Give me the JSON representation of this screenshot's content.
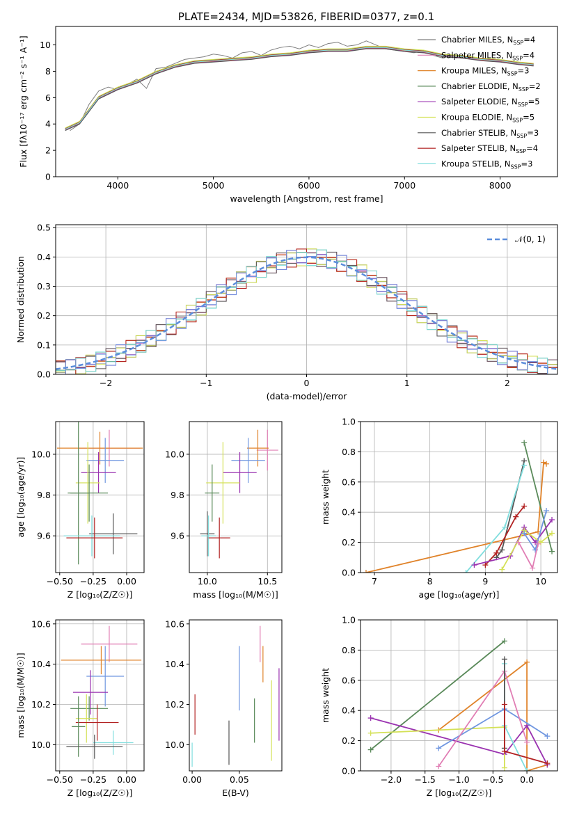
{
  "figure_title": "PLATE=2434, MJD=53826, FIBERID=0377, z=0.1",
  "legend_swatch_colors": {
    "Chabrier MILES": "#7f7f7f",
    "Salpeter MILES": "#e17fb5",
    "Kroupa MILES": "#e0832a",
    "Chabrier ELODIE": "#5a8a5a",
    "Salpeter ELODIE": "#9a32b0",
    "Kroupa ELODIE": "#d4e157",
    "Chabrier STELIB": "#555555",
    "Salpeter STELIB": "#b22222",
    "Kroupa STELIB": "#80dede",
    "Kroupa MILES alt": "#6f96e0"
  },
  "chart_data": [
    {
      "id": "spectrum",
      "type": "line",
      "xlabel": "wavelength [Angstrom, rest frame]",
      "ylabel": "Flux [fλ10⁻¹⁷ erg cm⁻² s⁻¹ A⁻¹]",
      "xlim": [
        3350,
        8600
      ],
      "ylim": [
        0,
        11.4
      ],
      "xticks": [
        4000,
        5000,
        6000,
        7000,
        8000
      ],
      "yticks": [
        0,
        2,
        4,
        6,
        8,
        10
      ],
      "grid": false,
      "legend_position": "right",
      "data_x": [
        3500,
        3600,
        3700,
        3800,
        3900,
        4000,
        4100,
        4200,
        4300,
        4400,
        4500,
        4600,
        4700,
        4800,
        4900,
        5000,
        5100,
        5200,
        5300,
        5400,
        5500,
        5600,
        5700,
        5800,
        5900,
        6000,
        6100,
        6200,
        6300,
        6400,
        6500,
        6600,
        6700,
        6800,
        6900,
        7000,
        7100,
        7200,
        7300,
        7400
      ],
      "data_y": [
        3.5,
        4.0,
        5.5,
        6.5,
        6.8,
        6.6,
        7.0,
        7.4,
        6.7,
        8.2,
        8.3,
        8.6,
        8.9,
        9.0,
        9.1,
        9.3,
        9.2,
        9.0,
        9.4,
        9.5,
        9.2,
        9.6,
        9.8,
        9.9,
        9.7,
        10.0,
        9.8,
        10.1,
        10.2,
        9.9,
        10.0,
        10.3,
        10.0,
        9.7,
        9.6,
        9.5,
        9.4,
        9.6,
        9.2,
        9.0
      ],
      "model_x": [
        3450,
        3600,
        3800,
        4000,
        4200,
        4400,
        4600,
        4800,
        5000,
        5200,
        5400,
        5600,
        5800,
        6000,
        6200,
        6400,
        6600,
        6800,
        7000,
        7200,
        7400,
        7600,
        7800,
        8000,
        8200,
        8350
      ],
      "model_y": [
        3.6,
        4.1,
        6.0,
        6.7,
        7.2,
        7.9,
        8.4,
        8.7,
        8.8,
        8.9,
        9.0,
        9.2,
        9.3,
        9.5,
        9.6,
        9.6,
        9.8,
        9.8,
        9.6,
        9.5,
        9.2,
        9.1,
        8.9,
        8.8,
        8.6,
        8.5
      ],
      "legend": [
        {
          "label": "Chabrier MILES, N",
          "sub": "SSP",
          "tail": "=4",
          "color": "#7f7f7f"
        },
        {
          "label": "Salpeter MILES, N",
          "sub": "SSP",
          "tail": "=4",
          "color": "#e17fb5"
        },
        {
          "label": "Kroupa MILES, N",
          "sub": "SSP",
          "tail": "=3",
          "color": "#e0832a"
        },
        {
          "label": "Chabrier ELODIE, N",
          "sub": "SSP",
          "tail": "=2",
          "color": "#5a8a5a"
        },
        {
          "label": "Salpeter ELODIE, N",
          "sub": "SSP",
          "tail": "=5",
          "color": "#9a32b0"
        },
        {
          "label": "Kroupa ELODIE, N",
          "sub": "SSP",
          "tail": "=5",
          "color": "#d4e157"
        },
        {
          "label": "Chabrier STELIB, N",
          "sub": "SSP",
          "tail": "=3",
          "color": "#555555"
        },
        {
          "label": "Salpeter STELIB, N",
          "sub": "SSP",
          "tail": "=4",
          "color": "#b22222"
        },
        {
          "label": "Kroupa STELIB, N",
          "sub": "SSP",
          "tail": "=3",
          "color": "#80dede"
        }
      ]
    },
    {
      "id": "residuals",
      "type": "area",
      "xlabel": "(data-model)/error",
      "ylabel": "Normed distribution",
      "xlim": [
        -2.5,
        2.5
      ],
      "ylim": [
        0,
        0.51
      ],
      "xticks": [
        -2,
        -1,
        0,
        1,
        2
      ],
      "xticklabels": [
        "−2",
        "−1",
        "0",
        "1",
        "2"
      ],
      "yticks": [
        0.0,
        0.1,
        0.2,
        0.3,
        0.4,
        0.5
      ],
      "yticklabels": [
        "0.0",
        "0.1",
        "0.2",
        "0.3",
        "0.4",
        "0.5"
      ],
      "grid": true,
      "legend_position": "top-right",
      "legend_label": "𝒩(0, 1)",
      "gauss_color": "#5b8ddb",
      "hist_colors": [
        "#7f7f7f",
        "#e17fb5",
        "#e0832a",
        "#5a8a5a",
        "#9a32b0",
        "#d4e157",
        "#555555",
        "#b22222",
        "#80dede",
        "#6f96e0"
      ]
    },
    {
      "id": "age_vs_Z",
      "type": "scatter",
      "xlabel": "Z [log₁₀(Z/Z☉)]",
      "ylabel": "age  [log₁₀(age/yr)]",
      "xlim": [
        -0.53,
        0.13
      ],
      "ylim": [
        9.42,
        10.16
      ],
      "xticks": [
        -0.5,
        -0.25,
        0.0
      ],
      "xticklabels": [
        "−0.50",
        "−0.25",
        "0.00"
      ],
      "yticks": [
        9.6,
        9.8,
        10.0
      ],
      "yticklabels": [
        "9.6",
        "9.8",
        "10.0"
      ],
      "grid": true,
      "points": [
        {
          "x": -0.13,
          "y": 10.03,
          "xerr": 0.23,
          "yerr": 0.09,
          "color": "#e17fb5"
        },
        {
          "x": -0.2,
          "y": 10.03,
          "xerr": 0.32,
          "yerr": 0.08,
          "color": "#e0832a"
        },
        {
          "x": -0.16,
          "y": 9.97,
          "xerr": 0.14,
          "yerr": 0.11,
          "color": "#6f96e0"
        },
        {
          "x": -0.21,
          "y": 9.91,
          "xerr": 0.13,
          "yerr": 0.1,
          "color": "#9a32b0"
        },
        {
          "x": -0.29,
          "y": 9.86,
          "xerr": 0.09,
          "yerr": 0.2,
          "color": "#d4e157"
        },
        {
          "x": -0.28,
          "y": 9.81,
          "xerr": 0.14,
          "yerr": 0.14,
          "color": "#5a8a5a"
        },
        {
          "x": -0.36,
          "y": 9.81,
          "xerr": 0.08,
          "yerr": 0.35,
          "color": "#5a8a5a"
        },
        {
          "x": -0.1,
          "y": 9.61,
          "xerr": 0.18,
          "yerr": 0.1,
          "color": "#555555"
        },
        {
          "x": -0.26,
          "y": 9.6,
          "xerr": 0.21,
          "yerr": 0.1,
          "color": "#80dede"
        },
        {
          "x": -0.24,
          "y": 9.59,
          "xerr": 0.21,
          "yerr": 0.1,
          "color": "#b22222"
        }
      ]
    },
    {
      "id": "age_vs_mass",
      "type": "scatter",
      "xlabel": "mass [log₁₀(M/M☉)]",
      "ylabel": "",
      "xlim": [
        9.85,
        10.62
      ],
      "ylim": [
        9.42,
        10.16
      ],
      "xticks": [
        10.0,
        10.5
      ],
      "xticklabels": [
        "10.0",
        "10.5"
      ],
      "yticks": [
        9.6,
        9.8,
        10.0
      ],
      "yticklabels": [
        "9.6",
        "9.8",
        "10.0"
      ],
      "grid": true,
      "points": [
        {
          "x": 10.5,
          "y": 10.02,
          "xerr": 0.09,
          "yerr": 0.1,
          "color": "#e17fb5"
        },
        {
          "x": 10.42,
          "y": 10.03,
          "xerr": 0.09,
          "yerr": 0.09,
          "color": "#e0832a"
        },
        {
          "x": 10.34,
          "y": 9.97,
          "xerr": 0.14,
          "yerr": 0.11,
          "color": "#6f96e0"
        },
        {
          "x": 10.27,
          "y": 9.91,
          "xerr": 0.14,
          "yerr": 0.1,
          "color": "#9a32b0"
        },
        {
          "x": 10.13,
          "y": 9.86,
          "xerr": 0.14,
          "yerr": 0.2,
          "color": "#d4e157"
        },
        {
          "x": 10.04,
          "y": 9.81,
          "xerr": 0.06,
          "yerr": 0.14,
          "color": "#5a8a5a"
        },
        {
          "x": 10.0,
          "y": 9.61,
          "xerr": 0.06,
          "yerr": 0.11,
          "color": "#555555"
        },
        {
          "x": 10.01,
          "y": 9.6,
          "xerr": 0.06,
          "yerr": 0.1,
          "color": "#80dede"
        },
        {
          "x": 10.1,
          "y": 9.59,
          "xerr": 0.09,
          "yerr": 0.1,
          "color": "#b22222"
        }
      ]
    },
    {
      "id": "massweight_vs_age",
      "type": "line",
      "xlabel": "age  [log₁₀(age/yr)]",
      "ylabel": "mass weight",
      "xlim": [
        6.75,
        10.3
      ],
      "ylim": [
        0,
        1.0
      ],
      "xticks": [
        7,
        8,
        9,
        10
      ],
      "xticklabels": [
        "7",
        "8",
        "9",
        "10"
      ],
      "yticks": [
        0.0,
        0.2,
        0.4,
        0.6,
        0.8,
        1.0
      ],
      "yticklabels": [
        "0.0",
        "0.2",
        "0.4",
        "0.6",
        "0.8",
        "1.0"
      ],
      "grid": true,
      "series": [
        {
          "color": "#e0832a",
          "x": [
            6.85,
            9.95,
            10.05,
            10.1
          ],
          "y": [
            0.0,
            0.27,
            0.73,
            0.72
          ]
        },
        {
          "color": "#5a8a5a",
          "x": [
            9.7,
            10.2
          ],
          "y": [
            0.86,
            0.14
          ]
        },
        {
          "color": "#555555",
          "x": [
            9.2,
            9.3,
            9.7
          ],
          "y": [
            0.1,
            0.15,
            0.74
          ]
        },
        {
          "color": "#80dede",
          "x": [
            8.65,
            9.35,
            9.7
          ],
          "y": [
            0.0,
            0.3,
            0.71
          ]
        },
        {
          "color": "#b22222",
          "x": [
            9.0,
            9.2,
            9.55,
            9.7
          ],
          "y": [
            0.05,
            0.13,
            0.37,
            0.44
          ]
        },
        {
          "color": "#9a32b0",
          "x": [
            8.8,
            9.45,
            9.7,
            9.9,
            10.2
          ],
          "y": [
            0.05,
            0.11,
            0.3,
            0.2,
            0.35
          ]
        },
        {
          "color": "#d4e157",
          "x": [
            9.3,
            9.7,
            10.0,
            10.2
          ],
          "y": [
            0.02,
            0.28,
            0.2,
            0.26
          ]
        },
        {
          "color": "#6f96e0",
          "x": [
            9.7,
            9.9,
            10.1
          ],
          "y": [
            0.26,
            0.15,
            0.41
          ]
        },
        {
          "color": "#e17fb5",
          "x": [
            9.6,
            9.85,
            9.95
          ],
          "y": [
            0.2,
            0.03,
            0.19
          ]
        }
      ]
    },
    {
      "id": "mass_vs_Z",
      "type": "scatter",
      "xlabel": "Z [log₁₀(Z/Z☉)]",
      "ylabel": "mass [log₁₀(M/M☉)]",
      "xlim": [
        -0.53,
        0.13
      ],
      "ylim": [
        9.87,
        10.62
      ],
      "xticks": [
        -0.5,
        -0.25,
        0.0
      ],
      "xticklabels": [
        "−0.50",
        "−0.25",
        "0.00"
      ],
      "yticks": [
        10.0,
        10.2,
        10.4,
        10.6
      ],
      "yticklabels": [
        "10.0",
        "10.2",
        "10.4",
        "10.6"
      ],
      "grid": true,
      "points": [
        {
          "x": -0.13,
          "y": 10.5,
          "xerr": 0.21,
          "yerr": 0.09,
          "color": "#e17fb5"
        },
        {
          "x": -0.19,
          "y": 10.42,
          "xerr": 0.3,
          "yerr": 0.07,
          "color": "#e0832a"
        },
        {
          "x": -0.16,
          "y": 10.34,
          "xerr": 0.14,
          "yerr": 0.15,
          "color": "#6f96e0"
        },
        {
          "x": -0.27,
          "y": 10.26,
          "xerr": 0.13,
          "yerr": 0.11,
          "color": "#9a32b0"
        },
        {
          "x": -0.28,
          "y": 10.18,
          "xerr": 0.14,
          "yerr": 0.06,
          "color": "#5a8a5a"
        },
        {
          "x": -0.3,
          "y": 10.13,
          "xerr": 0.08,
          "yerr": 0.12,
          "color": "#d4e157"
        },
        {
          "x": -0.22,
          "y": 10.11,
          "xerr": 0.16,
          "yerr": 0.09,
          "color": "#b22222"
        },
        {
          "x": -0.36,
          "y": 10.09,
          "xerr": 0.05,
          "yerr": 0.15,
          "color": "#5a8a5a"
        },
        {
          "x": -0.1,
          "y": 10.01,
          "xerr": 0.15,
          "yerr": 0.06,
          "color": "#80dede"
        },
        {
          "x": -0.24,
          "y": 9.99,
          "xerr": 0.21,
          "yerr": 0.06,
          "color": "#555555"
        }
      ]
    },
    {
      "id": "mass_vs_ebv",
      "type": "scatter",
      "xlabel": "E(B-V)",
      "ylabel": "",
      "xlim": [
        -0.003,
        0.095
      ],
      "ylim": [
        9.87,
        10.62
      ],
      "xticks": [
        0.0,
        0.05
      ],
      "xticklabels": [
        "0.00",
        "0.05"
      ],
      "yticks": [
        10.0,
        10.2,
        10.4,
        10.6
      ],
      "yticklabels": [
        "10.0",
        "10.2",
        "10.4",
        "10.6"
      ],
      "grid": false,
      "points": [
        {
          "x": 0.072,
          "y": 10.5,
          "yerr": 0.09,
          "color": "#e17fb5"
        },
        {
          "x": 0.075,
          "y": 10.4,
          "yerr": 0.09,
          "color": "#e0832a"
        },
        {
          "x": 0.05,
          "y": 10.33,
          "yerr": 0.16,
          "color": "#6f96e0"
        },
        {
          "x": 0.092,
          "y": 10.2,
          "yerr": 0.18,
          "color": "#9a32b0"
        },
        {
          "x": 0.066,
          "y": 10.12,
          "yerr": 0.11,
          "color": "#5a8a5a"
        },
        {
          "x": 0.084,
          "y": 10.12,
          "yerr": 0.2,
          "color": "#d4e157"
        },
        {
          "x": 0.003,
          "y": 10.15,
          "yerr": 0.1,
          "color": "#b22222"
        },
        {
          "x": 0.039,
          "y": 10.01,
          "yerr": 0.11,
          "color": "#555555"
        },
        {
          "x": 0.0,
          "y": 9.95,
          "yerr": 0.06,
          "color": "#80dede"
        }
      ]
    },
    {
      "id": "massweight_vs_Z",
      "type": "line",
      "xlabel": "Z [log₁₀(Z/Z☉)]",
      "ylabel": "mass weight",
      "xlim": [
        -2.45,
        0.45
      ],
      "ylim": [
        0,
        1.0
      ],
      "xticks": [
        -2.0,
        -1.5,
        -1.0,
        -0.5,
        0.0
      ],
      "xticklabels": [
        "−2.0",
        "−1.5",
        "−1.0",
        "−0.5",
        "0.0"
      ],
      "yticks": [
        0.0,
        0.2,
        0.4,
        0.6,
        0.8,
        1.0
      ],
      "yticklabels": [
        "0.0",
        "0.2",
        "0.4",
        "0.6",
        "0.8",
        "1.0"
      ],
      "grid": true,
      "series": [
        {
          "color": "#5a8a5a",
          "x": [
            -2.3,
            -0.33
          ],
          "y": [
            0.14,
            0.86
          ]
        },
        {
          "color": "#e0832a",
          "x": [
            -1.3,
            0.0,
            0.0,
            0.3
          ],
          "y": [
            0.27,
            0.72,
            0.0,
            0.04
          ]
        },
        {
          "color": "#9a32b0",
          "x": [
            -2.3,
            -0.33,
            0.0,
            0.3
          ],
          "y": [
            0.35,
            0.11,
            0.3,
            0.04
          ]
        },
        {
          "color": "#d4e157",
          "x": [
            -2.3,
            -0.33,
            -0.33
          ],
          "y": [
            0.25,
            0.29,
            0.02
          ]
        },
        {
          "color": "#6f96e0",
          "x": [
            -1.3,
            -0.33,
            0.3
          ],
          "y": [
            0.15,
            0.41,
            0.23
          ]
        },
        {
          "color": "#e17fb5",
          "x": [
            -1.3,
            -0.33,
            0.0
          ],
          "y": [
            0.03,
            0.66,
            0.19
          ]
        },
        {
          "color": "#80dede",
          "x": [
            -0.33,
            -0.33,
            0.0
          ],
          "y": [
            0.71,
            0.3,
            0.0
          ]
        },
        {
          "color": "#555555",
          "x": [
            -0.33,
            -0.33
          ],
          "y": [
            0.74,
            0.15
          ]
        },
        {
          "color": "#b22222",
          "x": [
            -0.33,
            -0.33,
            0.3
          ],
          "y": [
            0.44,
            0.13,
            0.05
          ]
        }
      ]
    }
  ]
}
